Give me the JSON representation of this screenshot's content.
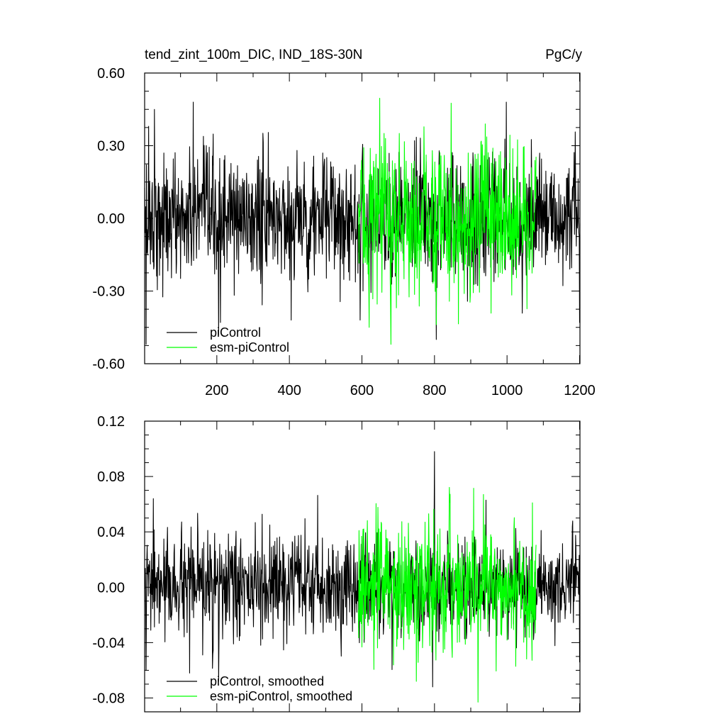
{
  "chart_data": [
    {
      "type": "line",
      "title": "tend_zint_100m_DIC, IND_18S-30N",
      "units": "PgC/y",
      "xlim": [
        1,
        1201
      ],
      "ylim": [
        -0.6,
        0.6
      ],
      "x_ticks": [
        200,
        400,
        600,
        800,
        1000,
        1200
      ],
      "x_tick_labels": [
        "200",
        "400",
        "600",
        "800",
        "1000",
        "1200"
      ],
      "y_ticks": [
        0.6,
        0.3,
        0.0,
        -0.3,
        -0.6
      ],
      "y_tick_labels": [
        "0.60",
        "0.30",
        "0.00",
        "-0.30",
        "-0.60"
      ],
      "legend_position": "bottom-left",
      "series": [
        {
          "name": "piControl",
          "color": "#000000",
          "x_range": [
            1,
            1201
          ],
          "amplitude": 0.13,
          "spikes": [
            [
              5,
              -0.52
            ],
            [
              12,
              0.38
            ],
            [
              28,
              0.45
            ],
            [
              135,
              0.48
            ],
            [
              205,
              -0.48
            ],
            [
              210,
              -0.43
            ],
            [
              405,
              -0.42
            ],
            [
              595,
              -0.42
            ],
            [
              805,
              -0.5
            ],
            [
              998,
              0.48
            ],
            [
              1200,
              -0.43
            ]
          ]
        },
        {
          "name": "esm-piControl",
          "color": "#00ff00",
          "x_range": [
            590,
            1080
          ],
          "amplitude": 0.16,
          "spikes": [
            [
              680,
              -0.52
            ],
            [
              665,
              0.33
            ],
            [
              940,
              0.39
            ],
            [
              620,
              -0.45
            ]
          ]
        }
      ]
    },
    {
      "type": "line",
      "title": "",
      "xlim": [
        1,
        1201
      ],
      "ylim": [
        -0.09,
        0.12
      ],
      "y_ticks": [
        0.12,
        0.08,
        0.04,
        0.0,
        -0.04,
        -0.08
      ],
      "y_tick_labels": [
        "0.12",
        "0.08",
        "0.04",
        "0.00",
        "-0.04",
        "-0.08"
      ],
      "legend_position": "bottom-left",
      "series": [
        {
          "name": "piControl, smoothed",
          "color": "#000000",
          "x_range": [
            1,
            1201
          ],
          "amplitude": 0.018,
          "spikes": [
            [
              5,
              -0.06
            ],
            [
              25,
              0.064
            ],
            [
              125,
              -0.062
            ],
            [
              205,
              -0.068
            ],
            [
              800,
              0.098
            ],
            [
              795,
              -0.072
            ],
            [
              1200,
              -0.054
            ]
          ]
        },
        {
          "name": "esm-piControl, smoothed",
          "color": "#00ff00",
          "x_range": [
            590,
            1080
          ],
          "amplitude": 0.022,
          "spikes": [
            [
              920,
              -0.083
            ],
            [
              935,
              0.067
            ],
            [
              750,
              -0.068
            ],
            [
              1070,
              0.061
            ]
          ]
        }
      ]
    }
  ]
}
